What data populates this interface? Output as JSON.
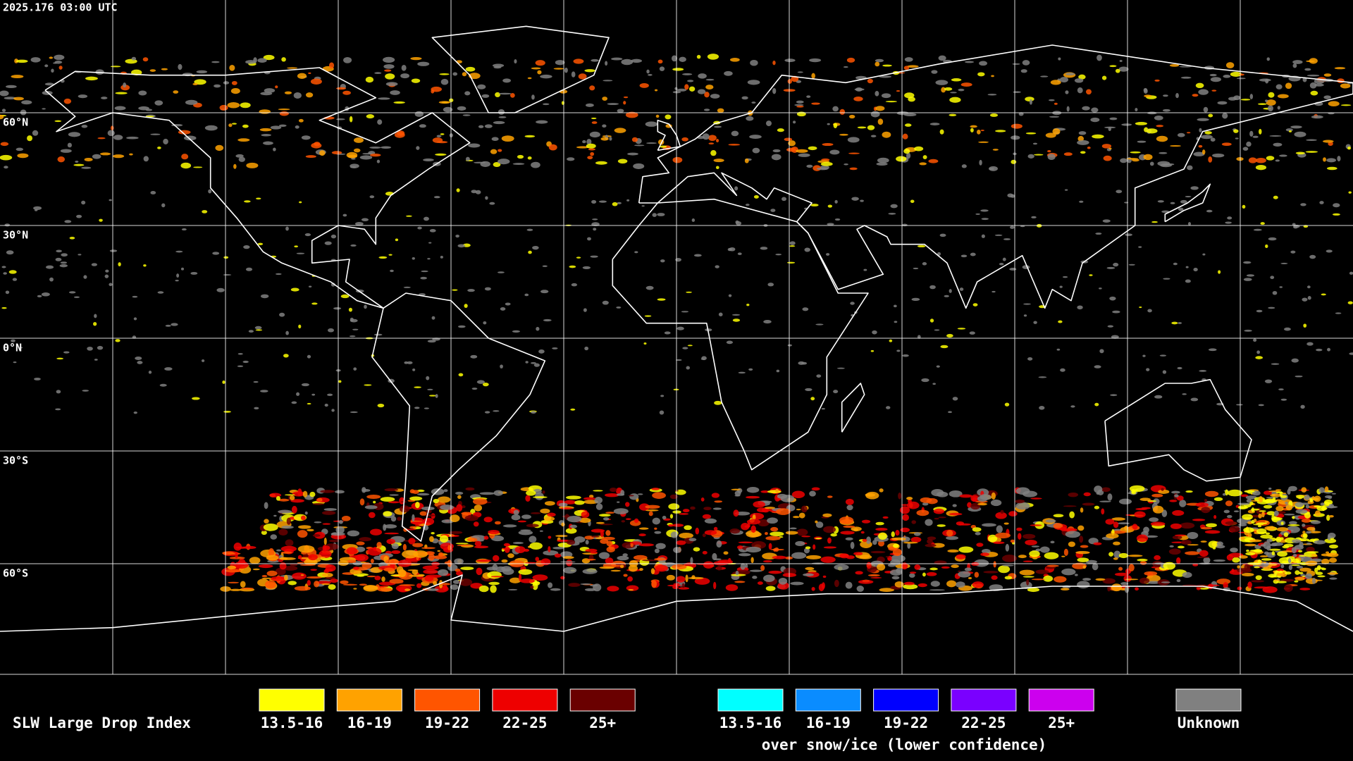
{
  "header": {
    "timestamp": "2025.176 03:00 UTC"
  },
  "map": {
    "latitude_labels": [
      "60°N",
      "30°N",
      "0°N",
      "30°S",
      "60°S"
    ]
  },
  "legend": {
    "title": "SLW Large Drop Index",
    "clear": [
      {
        "label": "13.5-16",
        "color": "#ffff00"
      },
      {
        "label": "16-19",
        "color": "#ffa200"
      },
      {
        "label": "19-22",
        "color": "#ff5500"
      },
      {
        "label": "22-25",
        "color": "#ee0000"
      },
      {
        "label": "25+",
        "color": "#6a0000"
      }
    ],
    "snow": [
      {
        "label": "13.5-16",
        "color": "#00ffff"
      },
      {
        "label": "16-19",
        "color": "#0a8cff"
      },
      {
        "label": "19-22",
        "color": "#0000ff"
      },
      {
        "label": "22-25",
        "color": "#7a00ff"
      },
      {
        "label": "25+",
        "color": "#cc00ee"
      }
    ],
    "snow_note": "over snow/ice (lower confidence)",
    "unknown": {
      "label": "Unknown",
      "color": "#808080"
    }
  }
}
